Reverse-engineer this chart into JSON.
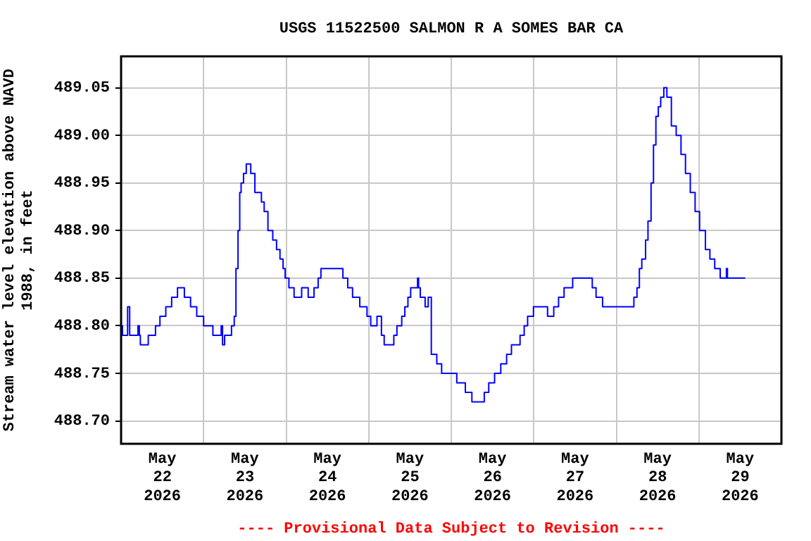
{
  "chart_data": {
    "type": "step",
    "title": "USGS 11522500 SALMON R A SOMES BAR CA",
    "ylabel": "Stream water level elevation above NAVD 1988, in feet",
    "annotations": [
      "---- Provisional Data Subject to Revision ----"
    ],
    "xlim": [
      "2026-05-22T00:00",
      "2026-05-30T00:00"
    ],
    "xticks": [
      {
        "value": "2026-05-22T12:00",
        "label": "May 22 2026"
      },
      {
        "value": "2026-05-23T00:00",
        "label": null
      },
      {
        "value": "2026-05-23T12:00",
        "label": "May 23 2026"
      },
      {
        "value": "2026-05-24T00:00",
        "label": null
      },
      {
        "value": "2026-05-24T12:00",
        "label": "May 24 2026"
      },
      {
        "value": "2026-05-25T00:00",
        "label": null
      },
      {
        "value": "2026-05-25T12:00",
        "label": "May 25 2026"
      },
      {
        "value": "2026-05-26T00:00",
        "label": null
      },
      {
        "value": "2026-05-26T12:00",
        "label": "May 26 2026"
      },
      {
        "value": "2026-05-27T00:00",
        "label": null
      },
      {
        "value": "2026-05-27T12:00",
        "label": "May 27 2026"
      },
      {
        "value": "2026-05-28T00:00",
        "label": null
      },
      {
        "value": "2026-05-28T12:00",
        "label": "May 28 2026"
      },
      {
        "value": "2026-05-29T00:00",
        "label": null
      },
      {
        "value": "2026-05-29T12:00",
        "label": "May 29 2026"
      }
    ],
    "ylim": [
      488.676,
      489.083
    ],
    "yticks": [
      {
        "value": 488.7,
        "label": "488.70"
      },
      {
        "value": 488.75,
        "label": "488.75"
      },
      {
        "value": 488.8,
        "label": "488.80"
      },
      {
        "value": 488.85,
        "label": "488.85"
      },
      {
        "value": 488.9,
        "label": "488.90"
      },
      {
        "value": 488.95,
        "label": "488.95"
      },
      {
        "value": 489.0,
        "label": "489.00"
      },
      {
        "value": 489.05,
        "label": "489.05"
      }
    ],
    "grid": true,
    "legend": false,
    "marker": "none",
    "line_style": "solid",
    "series": [
      {
        "color": "#0000ff",
        "x": [
          "2026-05-22T00:00",
          "2026-05-22T00:24",
          "2026-05-22T01:54",
          "2026-05-22T02:30",
          "2026-05-22T04:54",
          "2026-05-22T05:18",
          "2026-05-22T05:36",
          "2026-05-22T07:54",
          "2026-05-22T10:00",
          "2026-05-22T11:18",
          "2026-05-22T13:00",
          "2026-05-22T14:42",
          "2026-05-22T16:24",
          "2026-05-22T18:24",
          "2026-05-22T20:12",
          "2026-05-22T22:00",
          "2026-05-23T00:00",
          "2026-05-23T02:42",
          "2026-05-23T05:06",
          "2026-05-23T05:30",
          "2026-05-23T06:06",
          "2026-05-23T08:06",
          "2026-05-23T08:54",
          "2026-05-23T09:24",
          "2026-05-23T10:00",
          "2026-05-23T10:30",
          "2026-05-23T10:54",
          "2026-05-23T11:36",
          "2026-05-23T12:24",
          "2026-05-23T13:42",
          "2026-05-23T14:54",
          "2026-05-23T16:48",
          "2026-05-23T17:36",
          "2026-05-23T18:42",
          "2026-05-23T20:06",
          "2026-05-23T21:12",
          "2026-05-23T22:12",
          "2026-05-23T23:06",
          "2026-05-23T23:42",
          "2026-05-24T00:48",
          "2026-05-24T02:18",
          "2026-05-24T04:30",
          "2026-05-24T06:24",
          "2026-05-24T08:06",
          "2026-05-24T09:18",
          "2026-05-24T10:06",
          "2026-05-24T16:30",
          "2026-05-24T17:54",
          "2026-05-24T19:18",
          "2026-05-24T21:24",
          "2026-05-24T23:30",
          "2026-05-25T00:36",
          "2026-05-25T02:24",
          "2026-05-25T03:42",
          "2026-05-25T04:30",
          "2026-05-25T07:18",
          "2026-05-25T08:12",
          "2026-05-25T09:36",
          "2026-05-25T10:30",
          "2026-05-25T11:24",
          "2026-05-25T12:12",
          "2026-05-25T14:12",
          "2026-05-25T14:30",
          "2026-05-25T15:00",
          "2026-05-25T16:24",
          "2026-05-25T17:18",
          "2026-05-25T18:12",
          "2026-05-25T19:48",
          "2026-05-25T21:12",
          "2026-05-26T01:36",
          "2026-05-26T04:06",
          "2026-05-26T06:00",
          "2026-05-26T09:36",
          "2026-05-26T10:54",
          "2026-05-26T12:36",
          "2026-05-26T14:24",
          "2026-05-26T16:06",
          "2026-05-26T17:30",
          "2026-05-26T20:00",
          "2026-05-26T21:12",
          "2026-05-26T22:12",
          "2026-05-26T23:54",
          "2026-05-27T04:00",
          "2026-05-27T05:48",
          "2026-05-27T07:12",
          "2026-05-27T08:48",
          "2026-05-27T11:18",
          "2026-05-27T17:00",
          "2026-05-27T18:06",
          "2026-05-27T20:00",
          "2026-05-28T05:06",
          "2026-05-28T06:00",
          "2026-05-28T06:42",
          "2026-05-28T07:24",
          "2026-05-28T08:30",
          "2026-05-28T09:12",
          "2026-05-28T10:06",
          "2026-05-28T10:48",
          "2026-05-28T11:30",
          "2026-05-28T12:12",
          "2026-05-28T12:54",
          "2026-05-28T13:48",
          "2026-05-28T14:42",
          "2026-05-28T16:00",
          "2026-05-28T17:24",
          "2026-05-28T18:48",
          "2026-05-28T20:06",
          "2026-05-28T21:30",
          "2026-05-28T22:54",
          "2026-05-29T00:12",
          "2026-05-29T01:54",
          "2026-05-29T03:12",
          "2026-05-29T04:36",
          "2026-05-29T06:12",
          "2026-05-29T08:00",
          "2026-05-29T08:18",
          "2026-05-29T13:30"
        ],
        "values": [
          488.8,
          488.79,
          488.82,
          488.79,
          488.8,
          488.79,
          488.78,
          488.79,
          488.8,
          488.81,
          488.82,
          488.83,
          488.84,
          488.83,
          488.82,
          488.81,
          488.8,
          488.79,
          488.8,
          488.78,
          488.79,
          488.8,
          488.81,
          488.86,
          488.9,
          488.94,
          488.95,
          488.96,
          488.97,
          488.96,
          488.94,
          488.93,
          488.92,
          488.9,
          488.89,
          488.88,
          488.87,
          488.86,
          488.85,
          488.84,
          488.83,
          488.84,
          488.83,
          488.84,
          488.85,
          488.86,
          488.85,
          488.84,
          488.83,
          488.82,
          488.81,
          488.8,
          488.81,
          488.79,
          488.78,
          488.79,
          488.8,
          488.81,
          488.82,
          488.83,
          488.84,
          488.85,
          488.84,
          488.83,
          488.82,
          488.83,
          488.77,
          488.76,
          488.75,
          488.74,
          488.73,
          488.72,
          488.73,
          488.74,
          488.75,
          488.76,
          488.77,
          488.78,
          488.79,
          488.8,
          488.81,
          488.82,
          488.81,
          488.82,
          488.83,
          488.84,
          488.85,
          488.84,
          488.83,
          488.82,
          488.83,
          488.84,
          488.86,
          488.87,
          488.89,
          488.91,
          488.95,
          488.99,
          489.02,
          489.03,
          489.04,
          489.05,
          489.04,
          489.01,
          489.0,
          488.98,
          488.96,
          488.94,
          488.92,
          488.9,
          488.88,
          488.87,
          488.86,
          488.85,
          488.86,
          488.85,
          488.85
        ]
      }
    ]
  }
}
